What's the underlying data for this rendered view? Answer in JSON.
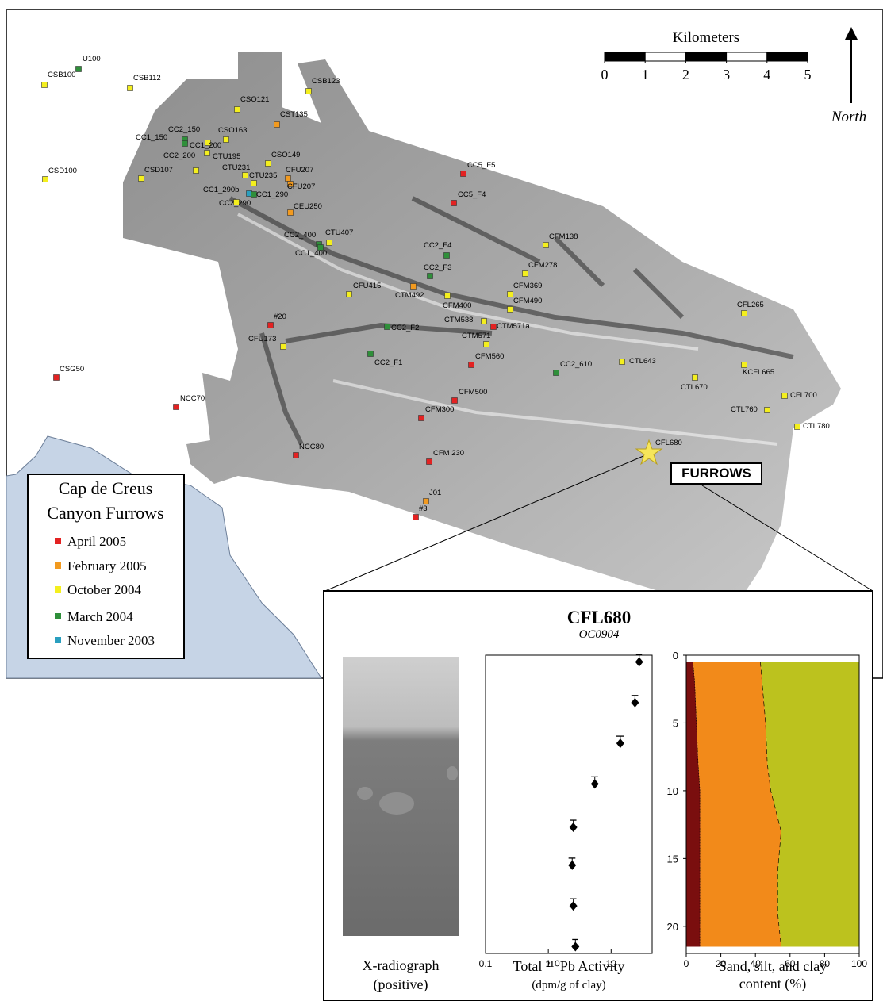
{
  "map": {
    "legend_title": [
      "Cap de Creus",
      "Canyon Furrows"
    ],
    "surveys": [
      {
        "name": "April 2005",
        "color": "#e32222"
      },
      {
        "name": "February 2005",
        "color": "#f29a1f"
      },
      {
        "name": "October 2004",
        "color": "#f4ef1e"
      },
      {
        "name": "March 2004",
        "color": "#2f8f3a"
      },
      {
        "name": "November 2003",
        "color": "#2a9fbf"
      }
    ],
    "stations": [
      {
        "label": "U100",
        "survey": 3
      },
      {
        "label": "CSB100",
        "survey": 2
      },
      {
        "label": "CSB112",
        "survey": 2
      },
      {
        "label": "CSB123",
        "survey": 2
      },
      {
        "label": "CSO121",
        "survey": 2
      },
      {
        "label": "CST135",
        "survey": 1
      },
      {
        "label": "CC2_150",
        "survey": 3
      },
      {
        "label": "CC1_150",
        "survey": 3
      },
      {
        "label": "CSO163",
        "survey": 2
      },
      {
        "label": "CC1_200",
        "survey": 2
      },
      {
        "label": "CC2_200",
        "survey": 2
      },
      {
        "label": "CTU195",
        "survey": 2
      },
      {
        "label": "CSO149",
        "survey": 2
      },
      {
        "label": "CTU231",
        "survey": 2
      },
      {
        "label": "CTU235",
        "survey": 2
      },
      {
        "label": "CFU207",
        "survey": 1
      },
      {
        "label": "CFU207",
        "survey": 1
      },
      {
        "label": "CSD100",
        "survey": 2
      },
      {
        "label": "CSD107",
        "survey": 2
      },
      {
        "label": "CC1_290b",
        "survey": 4
      },
      {
        "label": "CC1_290",
        "survey": 3
      },
      {
        "label": "CC2_290",
        "survey": 2
      },
      {
        "label": "CEU250",
        "survey": 1
      },
      {
        "label": "CC5_F5",
        "survey": 0
      },
      {
        "label": "CC5_F4",
        "survey": 0
      },
      {
        "label": "CC2_400",
        "survey": 3
      },
      {
        "label": "CTU407",
        "survey": 2
      },
      {
        "label": "CC1_400",
        "survey": 3
      },
      {
        "label": "CC2_F4",
        "survey": 3
      },
      {
        "label": "CFM138",
        "survey": 2
      },
      {
        "label": "CFM278",
        "survey": 2
      },
      {
        "label": "CC2_F3",
        "survey": 3
      },
      {
        "label": "CFU415",
        "survey": 2
      },
      {
        "label": "CTM492",
        "survey": 1
      },
      {
        "label": "CFM400",
        "survey": 2
      },
      {
        "label": "CFM369",
        "survey": 2
      },
      {
        "label": "CFM490",
        "survey": 2
      },
      {
        "label": "CTM538",
        "survey": 2
      },
      {
        "label": "CTM571a",
        "survey": 0
      },
      {
        "label": "CTM571",
        "survey": 2
      },
      {
        "label": "CC2_F2",
        "survey": 3
      },
      {
        "label": "#20",
        "survey": 0
      },
      {
        "label": "CFU173",
        "survey": 2
      },
      {
        "label": "CC2_F1",
        "survey": 3
      },
      {
        "label": "CFM560",
        "survey": 0
      },
      {
        "label": "CC2_610",
        "survey": 3
      },
      {
        "label": "CTL643",
        "survey": 2
      },
      {
        "label": "CFL265",
        "survey": 2
      },
      {
        "label": "KCFL665",
        "survey": 2
      },
      {
        "label": "CTL670",
        "survey": 2
      },
      {
        "label": "CFL700",
        "survey": 2
      },
      {
        "label": "CTL760",
        "survey": 2
      },
      {
        "label": "CTL780",
        "survey": 2
      },
      {
        "label": "CSG50",
        "survey": 0
      },
      {
        "label": "NCC70",
        "survey": 0
      },
      {
        "label": "CFM500",
        "survey": 0
      },
      {
        "label": "CFM300",
        "survey": 0
      },
      {
        "label": "NCC80",
        "survey": 0
      },
      {
        "label": "CFM 230",
        "survey": 0
      },
      {
        "label": "J01",
        "survey": 1
      },
      {
        "label": "#3",
        "survey": 0
      }
    ],
    "star_label": "CFL680",
    "callout": "FURROWS",
    "scale_bar": {
      "title": "Kilometers",
      "ticks": [
        0,
        1,
        2,
        3,
        4,
        5
      ]
    },
    "north": "North"
  },
  "inset": {
    "title": "CFL680",
    "subtitle": "OC0904",
    "radiograph_caption": [
      "X-radiograph",
      "(positive)"
    ]
  },
  "chart_data": [
    {
      "type": "scatter",
      "xscale": "log",
      "color": "#000000",
      "x": [
        28,
        24,
        14,
        5.5,
        2.5,
        2.4,
        2.5,
        2.7
      ],
      "xerr": [
        3,
        3,
        2,
        0.7,
        0.3,
        0.3,
        0.3,
        0.3
      ],
      "y": [
        0.5,
        3.5,
        6.5,
        9.5,
        12.7,
        15.5,
        18.5,
        21.5
      ],
      "xlim": [
        0.1,
        45
      ],
      "xticks": [
        0.1,
        1,
        10
      ],
      "ylim": [
        0,
        22
      ],
      "xlabel": [
        "Total ²¹⁰Pb Activity",
        "(dpm/g of clay)"
      ]
    },
    {
      "type": "area",
      "stacked": true,
      "orientation": "horizontal",
      "y": [
        0.5,
        2,
        5,
        8,
        10,
        13,
        16,
        19,
        21.5
      ],
      "series": [
        {
          "color": "#7a0e0e",
          "values": [
            4,
            5,
            6,
            7,
            8,
            8,
            8,
            8,
            8
          ]
        },
        {
          "color": "#f28a1a",
          "values": [
            39,
            39,
            40,
            40,
            41,
            47,
            45,
            45,
            47
          ]
        },
        {
          "color": "#bcc21e",
          "values": [
            57,
            56,
            54,
            53,
            51,
            45,
            47,
            47,
            45
          ]
        }
      ],
      "xlim": [
        0,
        100
      ],
      "xticks": [
        0,
        20,
        40,
        60,
        80,
        100
      ],
      "ylim": [
        0,
        22
      ],
      "yticks": [
        0,
        5,
        10,
        15,
        20
      ],
      "xlabel": [
        "Sand, silt, and clay",
        "content (%)"
      ]
    }
  ]
}
